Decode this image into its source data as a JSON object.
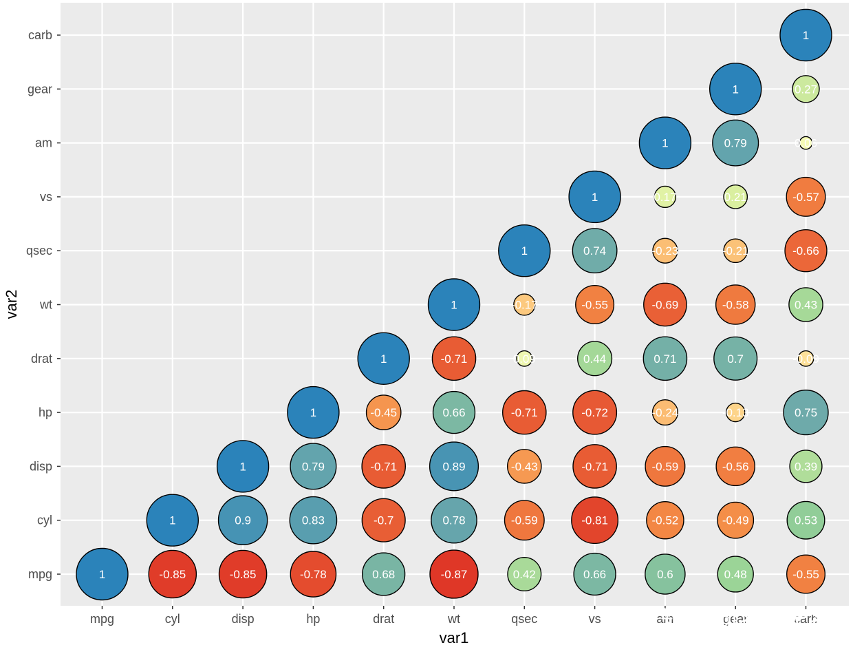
{
  "chart_data": {
    "type": "bubble-correlation-matrix",
    "variables": [
      "mpg",
      "cyl",
      "disp",
      "hp",
      "drat",
      "wt",
      "qsec",
      "vs",
      "am",
      "gear",
      "carb"
    ],
    "xlabel": "var1",
    "ylabel": "var2",
    "size_by": "abs(value)",
    "color_scale": "Spectral (red = -1, blue = +1)",
    "grid": true,
    "legend": "none",
    "points": [
      {
        "var1": "mpg",
        "var2": "mpg",
        "value": 1,
        "label": "1"
      },
      {
        "var1": "cyl",
        "var2": "mpg",
        "value": -0.85,
        "label": "-0.85"
      },
      {
        "var1": "cyl",
        "var2": "cyl",
        "value": 1,
        "label": "1"
      },
      {
        "var1": "disp",
        "var2": "mpg",
        "value": -0.85,
        "label": "-0.85"
      },
      {
        "var1": "disp",
        "var2": "cyl",
        "value": 0.9,
        "label": "0.9"
      },
      {
        "var1": "disp",
        "var2": "disp",
        "value": 1,
        "label": "1"
      },
      {
        "var1": "hp",
        "var2": "mpg",
        "value": -0.78,
        "label": "-0.78"
      },
      {
        "var1": "hp",
        "var2": "cyl",
        "value": 0.83,
        "label": "0.83"
      },
      {
        "var1": "hp",
        "var2": "disp",
        "value": 0.79,
        "label": "0.79"
      },
      {
        "var1": "hp",
        "var2": "hp",
        "value": 1,
        "label": "1"
      },
      {
        "var1": "drat",
        "var2": "mpg",
        "value": 0.68,
        "label": "0.68"
      },
      {
        "var1": "drat",
        "var2": "cyl",
        "value": -0.7,
        "label": "-0.7"
      },
      {
        "var1": "drat",
        "var2": "disp",
        "value": -0.71,
        "label": "-0.71"
      },
      {
        "var1": "drat",
        "var2": "hp",
        "value": -0.45,
        "label": "-0.45"
      },
      {
        "var1": "drat",
        "var2": "drat",
        "value": 1,
        "label": "1"
      },
      {
        "var1": "wt",
        "var2": "mpg",
        "value": -0.87,
        "label": "-0.87"
      },
      {
        "var1": "wt",
        "var2": "cyl",
        "value": 0.78,
        "label": "0.78"
      },
      {
        "var1": "wt",
        "var2": "disp",
        "value": 0.89,
        "label": "0.89"
      },
      {
        "var1": "wt",
        "var2": "hp",
        "value": 0.66,
        "label": "0.66"
      },
      {
        "var1": "wt",
        "var2": "drat",
        "value": -0.71,
        "label": "-0.71"
      },
      {
        "var1": "wt",
        "var2": "wt",
        "value": 1,
        "label": "1"
      },
      {
        "var1": "qsec",
        "var2": "mpg",
        "value": 0.42,
        "label": "0.42"
      },
      {
        "var1": "qsec",
        "var2": "cyl",
        "value": -0.59,
        "label": "-0.59"
      },
      {
        "var1": "qsec",
        "var2": "disp",
        "value": -0.43,
        "label": "-0.43"
      },
      {
        "var1": "qsec",
        "var2": "hp",
        "value": -0.71,
        "label": "-0.71"
      },
      {
        "var1": "qsec",
        "var2": "drat",
        "value": 0.09,
        "label": "0.09"
      },
      {
        "var1": "qsec",
        "var2": "wt",
        "value": -0.17,
        "label": "-0.17"
      },
      {
        "var1": "qsec",
        "var2": "qsec",
        "value": 1,
        "label": "1"
      },
      {
        "var1": "vs",
        "var2": "mpg",
        "value": 0.66,
        "label": "0.66"
      },
      {
        "var1": "vs",
        "var2": "cyl",
        "value": -0.81,
        "label": "-0.81"
      },
      {
        "var1": "vs",
        "var2": "disp",
        "value": -0.71,
        "label": "-0.71"
      },
      {
        "var1": "vs",
        "var2": "hp",
        "value": -0.72,
        "label": "-0.72"
      },
      {
        "var1": "vs",
        "var2": "drat",
        "value": 0.44,
        "label": "0.44"
      },
      {
        "var1": "vs",
        "var2": "wt",
        "value": -0.55,
        "label": "-0.55"
      },
      {
        "var1": "vs",
        "var2": "qsec",
        "value": 0.74,
        "label": "0.74"
      },
      {
        "var1": "vs",
        "var2": "vs",
        "value": 1,
        "label": "1"
      },
      {
        "var1": "am",
        "var2": "mpg",
        "value": 0.6,
        "label": "0.6"
      },
      {
        "var1": "am",
        "var2": "cyl",
        "value": -0.52,
        "label": "-0.52"
      },
      {
        "var1": "am",
        "var2": "disp",
        "value": -0.59,
        "label": "-0.59"
      },
      {
        "var1": "am",
        "var2": "hp",
        "value": -0.24,
        "label": "-0.24"
      },
      {
        "var1": "am",
        "var2": "drat",
        "value": 0.71,
        "label": "0.71"
      },
      {
        "var1": "am",
        "var2": "wt",
        "value": -0.69,
        "label": "-0.69"
      },
      {
        "var1": "am",
        "var2": "qsec",
        "value": -0.23,
        "label": "-0.23"
      },
      {
        "var1": "am",
        "var2": "vs",
        "value": 0.17,
        "label": "0.17"
      },
      {
        "var1": "am",
        "var2": "am",
        "value": 1,
        "label": "1"
      },
      {
        "var1": "gear",
        "var2": "mpg",
        "value": 0.48,
        "label": "0.48"
      },
      {
        "var1": "gear",
        "var2": "cyl",
        "value": -0.49,
        "label": "-0.49"
      },
      {
        "var1": "gear",
        "var2": "disp",
        "value": -0.56,
        "label": "-0.56"
      },
      {
        "var1": "gear",
        "var2": "hp",
        "value": -0.13,
        "label": "-0.13"
      },
      {
        "var1": "gear",
        "var2": "drat",
        "value": 0.7,
        "label": "0.7"
      },
      {
        "var1": "gear",
        "var2": "wt",
        "value": -0.58,
        "label": "-0.58"
      },
      {
        "var1": "gear",
        "var2": "qsec",
        "value": -0.21,
        "label": "-0.21"
      },
      {
        "var1": "gear",
        "var2": "vs",
        "value": 0.21,
        "label": "0.21"
      },
      {
        "var1": "gear",
        "var2": "am",
        "value": 0.79,
        "label": "0.79"
      },
      {
        "var1": "gear",
        "var2": "gear",
        "value": 1,
        "label": "1"
      },
      {
        "var1": "carb",
        "var2": "mpg",
        "value": -0.55,
        "label": "-0.55"
      },
      {
        "var1": "carb",
        "var2": "cyl",
        "value": 0.53,
        "label": "0.53"
      },
      {
        "var1": "carb",
        "var2": "disp",
        "value": 0.39,
        "label": "0.39"
      },
      {
        "var1": "carb",
        "var2": "hp",
        "value": 0.75,
        "label": "0.75"
      },
      {
        "var1": "carb",
        "var2": "drat",
        "value": -0.09,
        "label": "-0.09"
      },
      {
        "var1": "carb",
        "var2": "wt",
        "value": 0.43,
        "label": "0.43"
      },
      {
        "var1": "carb",
        "var2": "qsec",
        "value": -0.66,
        "label": "-0.66"
      },
      {
        "var1": "carb",
        "var2": "vs",
        "value": -0.57,
        "label": "-0.57"
      },
      {
        "var1": "carb",
        "var2": "am",
        "value": 0.06,
        "label": "0.06"
      },
      {
        "var1": "carb",
        "var2": "gear",
        "value": 0.27,
        "label": "0.27"
      },
      {
        "var1": "carb",
        "var2": "carb",
        "value": 1,
        "label": "1"
      }
    ]
  },
  "colors": {
    "panel_background": "#ebebeb",
    "grid_line": "#ffffff",
    "bubble_stroke": "#000000",
    "label_text": "#ffffff",
    "tick_text": "#4d4d4d"
  },
  "watermark": {
    "text": "知乎 @名本无名"
  }
}
